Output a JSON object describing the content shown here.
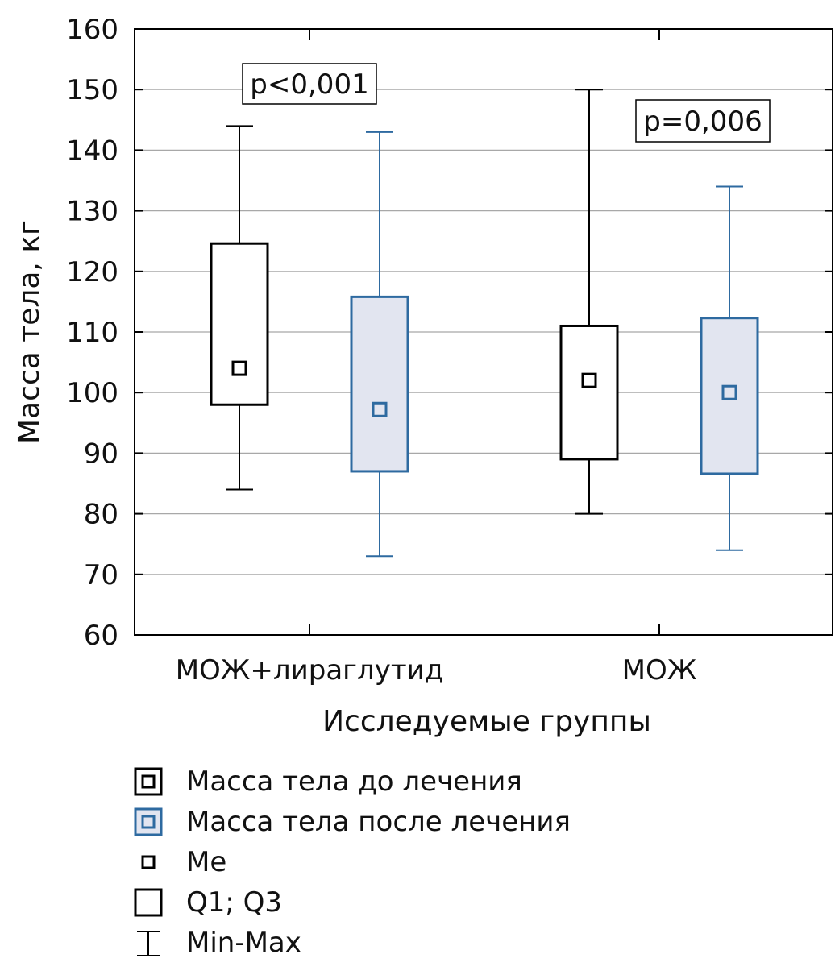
{
  "chart_data": {
    "type": "boxplot",
    "ylabel": "Масса тела, кг",
    "xlabel": "Исследуемые группы",
    "ylim": [
      60,
      160
    ],
    "yticks": [
      60,
      70,
      80,
      90,
      100,
      110,
      120,
      130,
      140,
      150,
      160
    ],
    "grid": true,
    "categories": [
      "МОЖ+лираглутид",
      "МОЖ"
    ],
    "series": [
      {
        "name": "Масса тела до лечения",
        "color": "#000000",
        "fill": "#ffffff",
        "values": [
          {
            "min": 84,
            "q1": 98,
            "median": 104,
            "q3": 124.6,
            "max": 144
          },
          {
            "min": 80,
            "q1": 89,
            "median": 102,
            "q3": 111,
            "max": 150
          }
        ]
      },
      {
        "name": "Масса тела после лечения",
        "color": "#2e6aa0",
        "fill": "#e2e5f0",
        "values": [
          {
            "min": 73,
            "q1": 87,
            "median": 97.2,
            "q3": 115.8,
            "max": 143
          },
          {
            "min": 74,
            "q1": 86.6,
            "median": 100,
            "q3": 112.3,
            "max": 134
          }
        ]
      }
    ],
    "annotations": [
      "p<0,001",
      "p=0,006"
    ],
    "legend": {
      "placement": "bottom",
      "items": [
        {
          "label": "Масса тела до лечения",
          "symbol": "group-before-icon"
        },
        {
          "label": "Масса тела после лечения",
          "symbol": "group-after-icon"
        },
        {
          "label": "Me",
          "symbol": "median-icon"
        },
        {
          "label": "Q1; Q3",
          "symbol": "box-icon"
        },
        {
          "label": "Min-Max",
          "symbol": "whisker-icon"
        }
      ]
    }
  }
}
